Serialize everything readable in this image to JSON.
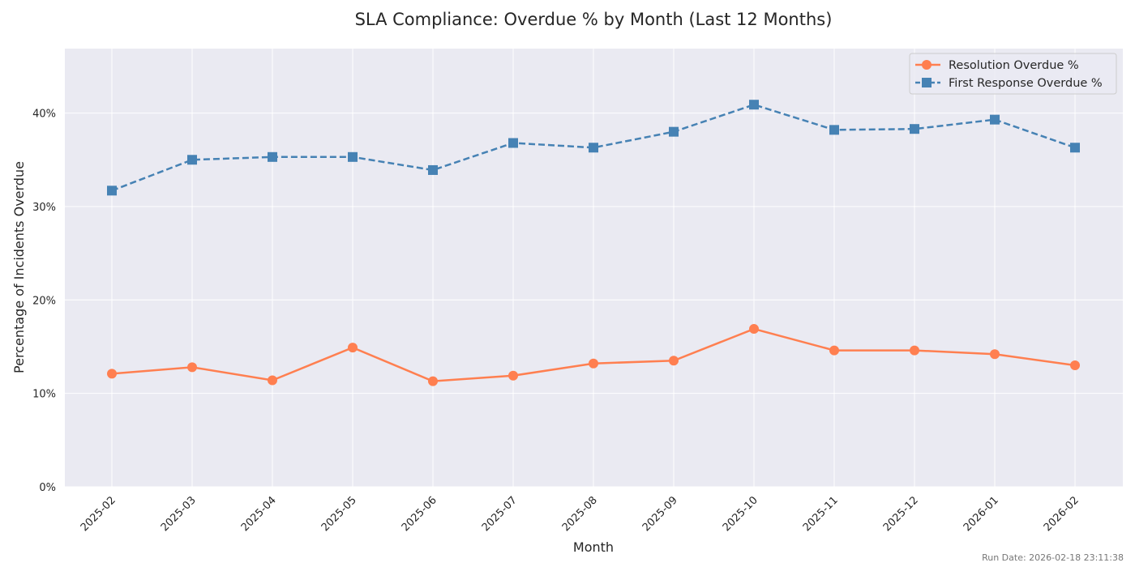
{
  "chart_data": {
    "type": "line",
    "title": "SLA Compliance: Overdue % by Month (Last 12 Months)",
    "xlabel": "Month",
    "ylabel": "Percentage of Incidents Overdue",
    "categories": [
      "2025-02",
      "2025-03",
      "2025-04",
      "2025-05",
      "2025-06",
      "2025-07",
      "2025-08",
      "2025-09",
      "2025-10",
      "2025-11",
      "2025-12",
      "2026-01",
      "2026-02"
    ],
    "ylim": [
      0,
      46.9
    ],
    "yticks": [
      0,
      10,
      20,
      30,
      40
    ],
    "ytick_labels": [
      "0%",
      "10%",
      "20%",
      "30%",
      "40%"
    ],
    "grid": true,
    "legend_position": "top-right",
    "series": [
      {
        "name": "Resolution Overdue %",
        "color": "#ff7f50",
        "marker": "circle",
        "linestyle": "solid",
        "values": [
          12.1,
          12.8,
          11.4,
          14.9,
          11.3,
          11.9,
          13.2,
          13.5,
          16.9,
          14.6,
          14.6,
          14.2,
          13.0
        ]
      },
      {
        "name": "First Response Overdue %",
        "color": "#4682b4",
        "marker": "square",
        "linestyle": "dashed",
        "values": [
          31.7,
          35.0,
          35.3,
          35.3,
          33.9,
          36.8,
          36.3,
          38.0,
          40.9,
          38.2,
          38.3,
          39.3,
          36.3
        ]
      }
    ]
  },
  "footer": {
    "run_date": "Run Date: 2026-02-18 23:11:38"
  },
  "colors": {
    "plot_background": "#eaeaf2",
    "grid": "#ffffff"
  }
}
